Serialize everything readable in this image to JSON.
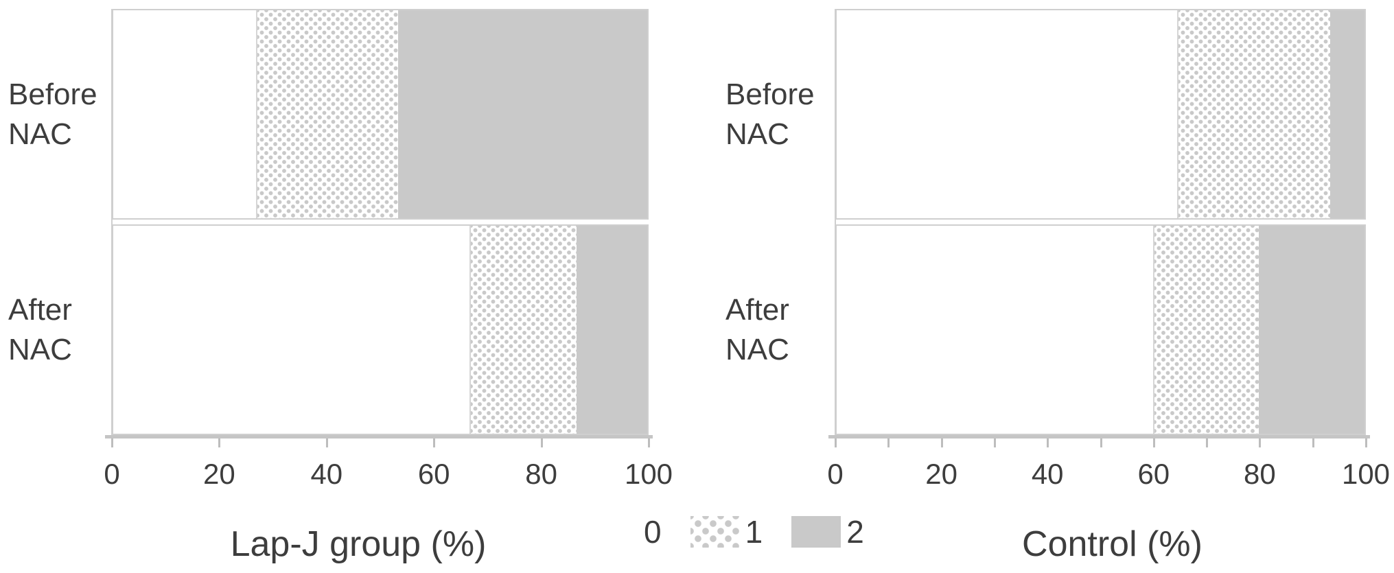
{
  "colors": {
    "bar_gray": "#c9c9c9",
    "pattern_dot": "#c9c9c9",
    "axis_line": "#c5c5c5",
    "tick": "#bdbdbd",
    "text": "#3d3d3d",
    "bar_border": "#cfcfcf",
    "background": "#ffffff"
  },
  "legend": {
    "items": [
      {
        "label": "0",
        "swatch": "white"
      },
      {
        "label": "1",
        "swatch": "dotted"
      },
      {
        "label": "2",
        "swatch": "gray"
      }
    ]
  },
  "chart_data": [
    {
      "type": "bar",
      "orientation": "horizontal",
      "stacked": true,
      "title": "Lap-J group (%)",
      "categories": [
        "Before NAC",
        "After NAC"
      ],
      "category_label_lines": [
        [
          "Before",
          "NAC"
        ],
        [
          "After",
          "NAC"
        ]
      ],
      "series": [
        {
          "name": "0",
          "values": [
            26.7,
            66.7
          ]
        },
        {
          "name": "1",
          "values": [
            26.7,
            20.0
          ]
        },
        {
          "name": "2",
          "values": [
            46.6,
            13.3
          ]
        }
      ],
      "xlim": [
        0,
        100
      ],
      "x_tick_labels": [
        0,
        20,
        40,
        60,
        80,
        100
      ],
      "minor_tick_step": 20,
      "grid": false,
      "unit": "percent",
      "legend_position": "bottom-center-shared"
    },
    {
      "type": "bar",
      "orientation": "horizontal",
      "stacked": true,
      "title": "Control (%)",
      "categories": [
        "Before NAC",
        "After NAC"
      ],
      "category_label_lines": [
        [
          "Before",
          "NAC"
        ],
        [
          "After",
          "NAC"
        ]
      ],
      "series": [
        {
          "name": "0",
          "values": [
            64.5,
            60.0
          ]
        },
        {
          "name": "1",
          "values": [
            29.0,
            20.0
          ]
        },
        {
          "name": "2",
          "values": [
            6.5,
            20.0
          ]
        }
      ],
      "xlim": [
        0,
        100
      ],
      "x_tick_labels": [
        0,
        20,
        40,
        60,
        80,
        100
      ],
      "minor_tick_step": 10,
      "grid": false,
      "unit": "percent",
      "legend_position": "bottom-center-shared"
    }
  ]
}
